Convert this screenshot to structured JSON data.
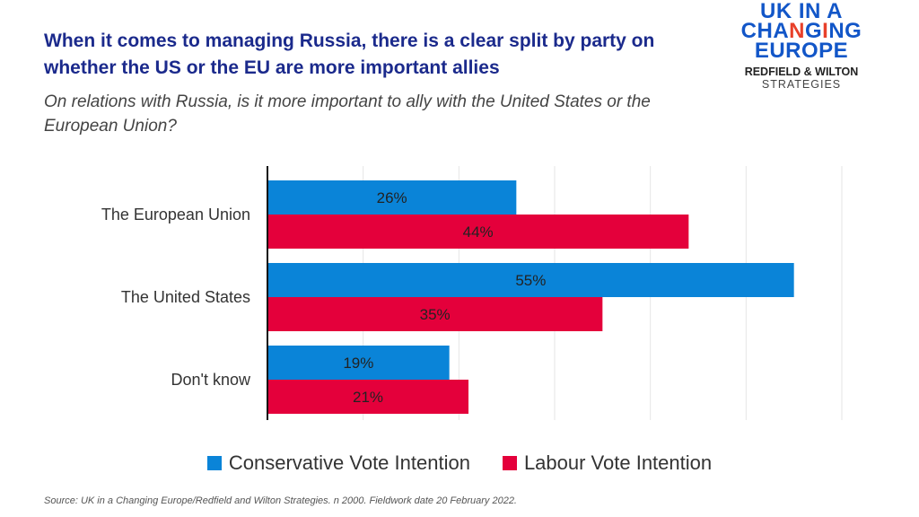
{
  "header": {
    "title": "When it comes to managing Russia, there is a clear split by party on whether the US or the EU are more important allies",
    "subtitle": "On relations with Russia, is it more important to ally with the United States or the European Union?"
  },
  "logo": {
    "line1": "UK IN A",
    "line2": "CHANGING",
    "line3": "EUROPE",
    "line4": "REDFIELD & WILTON",
    "line5": "STRATEGIES"
  },
  "chart_data": {
    "type": "bar",
    "orientation": "horizontal",
    "categories": [
      "The European Union",
      "The United States",
      "Don't know"
    ],
    "series": [
      {
        "name": "Conservative Vote Intention",
        "values": [
          26,
          55,
          19
        ],
        "labels": [
          "26%",
          "55%",
          "19%"
        ],
        "color": "#0a84d8"
      },
      {
        "name": "Labour Vote Intention",
        "values": [
          44,
          35,
          21
        ],
        "labels": [
          "44%",
          "35%",
          "21%"
        ],
        "color": "#e4003b"
      }
    ],
    "xlim": [
      0,
      60
    ],
    "grid": true,
    "legend": "bottom"
  },
  "source": "Source: UK in a Changing Europe/Redfield and Wilton Strategies.  n 2000.  Fieldwork date 20 February 2022."
}
